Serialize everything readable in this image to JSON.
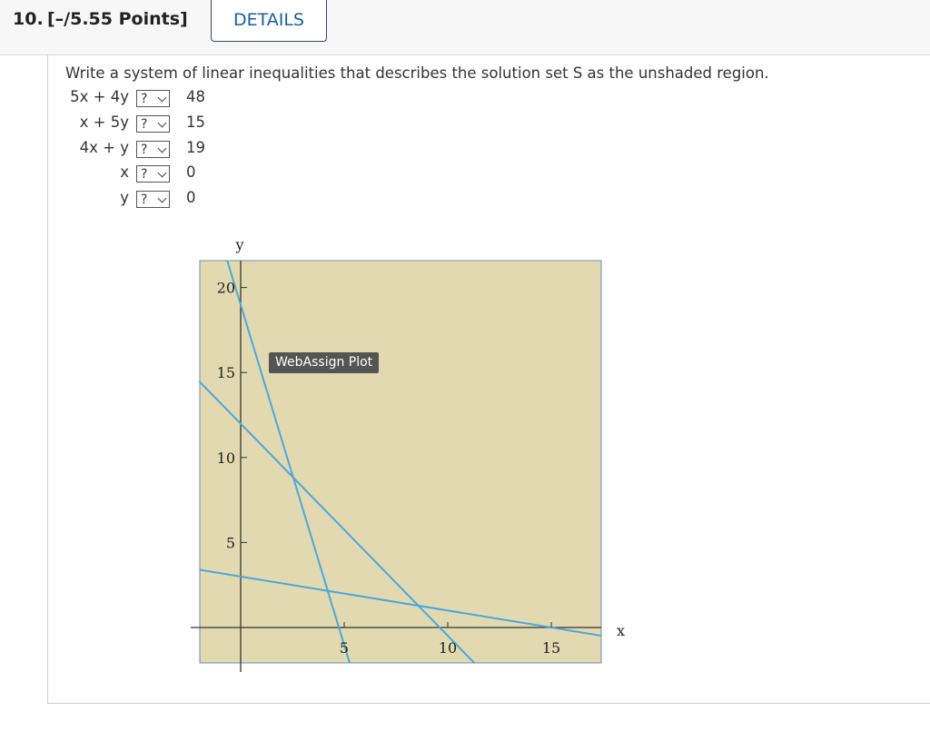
{
  "header": {
    "number": "10.",
    "points": "[–/5.55 Points]",
    "details": "DETAILS"
  },
  "question": {
    "prompt": "Write a system of linear inequalities that describes the solution set S as the unshaded region.",
    "rows": [
      {
        "lhs": "5x + 4y",
        "relation": "?",
        "rhs": 48
      },
      {
        "lhs": "x + 5y",
        "relation": "?",
        "rhs": 15
      },
      {
        "lhs": "4x + y",
        "relation": "?",
        "rhs": 19
      },
      {
        "lhs": "x",
        "relation": "?",
        "rhs": 0
      },
      {
        "lhs": "y",
        "relation": "?",
        "rhs": 0
      }
    ]
  },
  "plot": {
    "x_label": "x",
    "y_label": "y",
    "xticks": [
      5,
      10,
      15
    ],
    "yticks": [
      5,
      10,
      15,
      20
    ],
    "tooltip": "WebAssign Plot"
  }
}
